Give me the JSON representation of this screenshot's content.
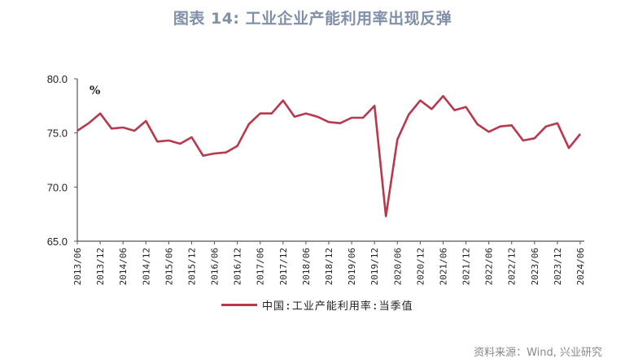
{
  "title": "图表 14: 工业企业产能利用率出现反弹",
  "unit_label": "%",
  "legend": {
    "label": "中国:工业产能利用率:当季值",
    "color": "#B8384C"
  },
  "source": "资料来源：Wind, 兴业研究",
  "colors": {
    "title": "#8090A8",
    "line": "#B8384C",
    "axis": "#555555"
  },
  "chart_data": {
    "type": "line",
    "title": "图表 14: 工业企业产能利用率出现反弹",
    "xlabel": "",
    "ylabel": "%",
    "ylim": [
      65,
      80
    ],
    "yticks": [
      "80.0",
      "75.0",
      "70.0",
      "65.0"
    ],
    "xticks": [
      "2013/06",
      "2013/12",
      "2014/06",
      "2014/12",
      "2015/06",
      "2015/12",
      "2016/06",
      "2016/12",
      "2017/06",
      "2017/12",
      "2018/06",
      "2018/12",
      "2019/06",
      "2019/12",
      "2020/06",
      "2020/12",
      "2021/06",
      "2021/12",
      "2022/06",
      "2022/12",
      "2023/06",
      "2023/12",
      "2024/06"
    ],
    "grid": false,
    "legend_position": "bottom",
    "x": [
      "2013/06",
      "2013/09",
      "2013/12",
      "2014/03",
      "2014/06",
      "2014/09",
      "2014/12",
      "2015/03",
      "2015/06",
      "2015/09",
      "2015/12",
      "2016/03",
      "2016/06",
      "2016/09",
      "2016/12",
      "2017/03",
      "2017/06",
      "2017/09",
      "2017/12",
      "2018/03",
      "2018/06",
      "2018/09",
      "2018/12",
      "2019/03",
      "2019/06",
      "2019/09",
      "2019/12",
      "2020/03",
      "2020/06",
      "2020/09",
      "2020/12",
      "2021/03",
      "2021/06",
      "2021/09",
      "2021/12",
      "2022/03",
      "2022/06",
      "2022/09",
      "2022/12",
      "2023/03",
      "2023/06",
      "2023/09",
      "2023/12",
      "2024/03",
      "2024/06"
    ],
    "series": [
      {
        "name": "中国:工业产能利用率:当季值",
        "values": [
          75.2,
          75.9,
          76.8,
          75.4,
          75.5,
          75.2,
          76.1,
          74.2,
          74.3,
          74.0,
          74.6,
          72.9,
          73.1,
          73.2,
          73.8,
          75.8,
          76.8,
          76.8,
          78.0,
          76.5,
          76.8,
          76.5,
          76.0,
          75.9,
          76.4,
          76.4,
          77.5,
          67.3,
          74.4,
          76.7,
          78.0,
          77.2,
          78.4,
          77.1,
          77.4,
          75.8,
          75.1,
          75.6,
          75.7,
          74.3,
          74.5,
          75.6,
          75.9,
          73.6,
          74.9
        ]
      }
    ]
  }
}
